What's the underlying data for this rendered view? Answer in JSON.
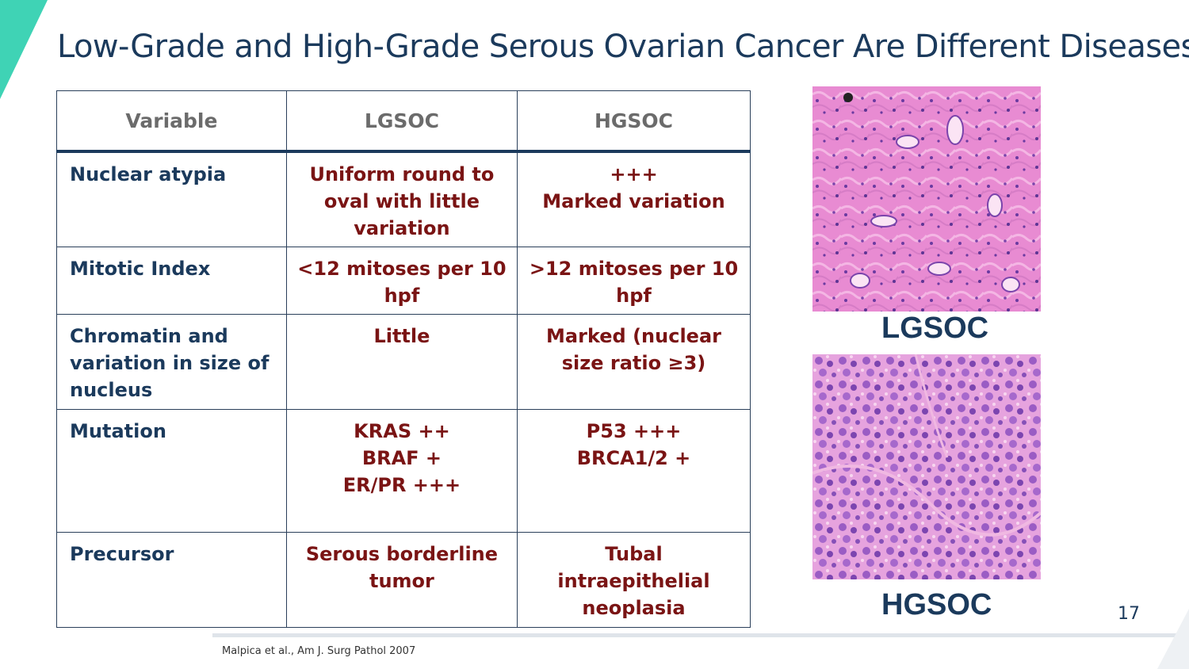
{
  "slide": {
    "title": "Low-Grade and High-Grade Serous Ovarian Cancer Are Different Diseases",
    "page_number": "17",
    "citation": "Malpica et al., Am J. Surg Pathol 2007",
    "colors": {
      "title": "#1b3a5c",
      "row_label": "#1b3a5c",
      "cell_text": "#7a1414",
      "header_text": "#6b6b6b",
      "accent": "#3fd3b5"
    }
  },
  "table": {
    "headers": [
      "Variable",
      "LGSOC",
      "HGSOC"
    ],
    "rows": [
      {
        "variable": [
          "Nuclear atypia"
        ],
        "lgsoc": [
          "Uniform round to",
          "oval with little",
          "variation"
        ],
        "hgsoc": [
          "+++",
          "Marked variation"
        ]
      },
      {
        "variable": [
          "Mitotic Index"
        ],
        "lgsoc": [
          "<12 mitoses per 10",
          "hpf"
        ],
        "hgsoc": [
          ">12 mitoses per 10",
          "hpf"
        ]
      },
      {
        "variable": [
          "Chromatin and",
          "variation in size of",
          "nucleus"
        ],
        "lgsoc": [
          "Little"
        ],
        "hgsoc": [
          "Marked (nuclear",
          "size ratio ≥3)"
        ]
      },
      {
        "variable": [
          "Mutation"
        ],
        "lgsoc": [
          "KRAS ++",
          "BRAF +",
          "ER/PR +++"
        ],
        "hgsoc": [
          "P53 +++",
          "BRCA1/2 +"
        ]
      },
      {
        "variable": [
          "Precursor"
        ],
        "lgsoc": [
          "Serous borderline",
          "tumor"
        ],
        "hgsoc": [
          "Tubal",
          "intraepithelial",
          "neoplasia"
        ]
      }
    ]
  },
  "images": [
    {
      "caption": "LGSOC",
      "icon": "histology-image"
    },
    {
      "caption": "HGSOC",
      "icon": "histology-image"
    }
  ]
}
